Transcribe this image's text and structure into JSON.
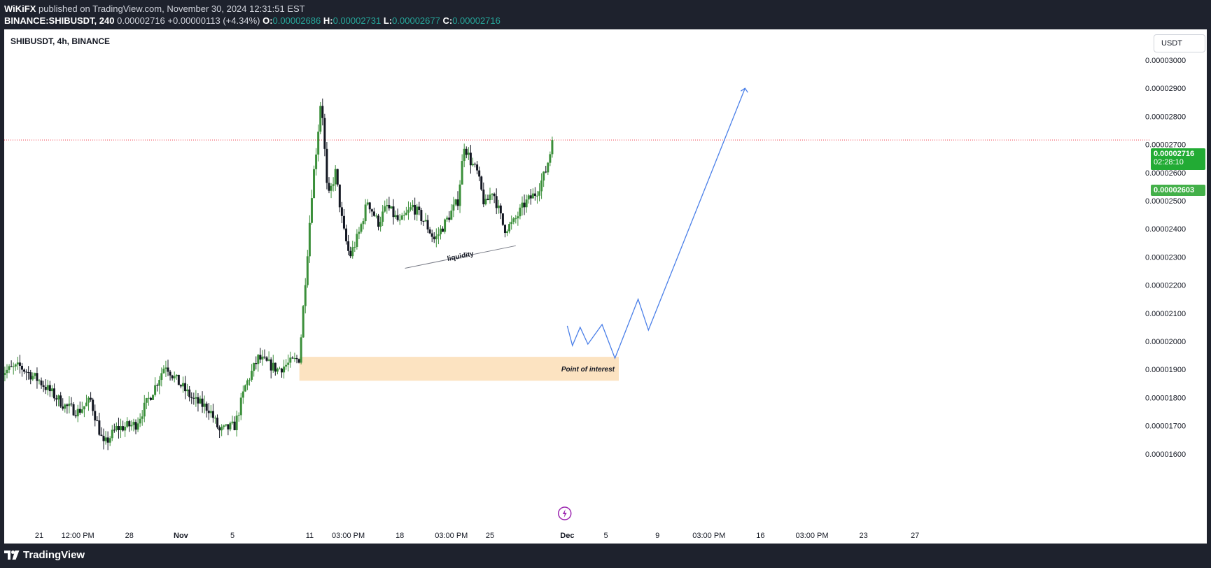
{
  "header": {
    "line1": {
      "author": "WiKiFX",
      "text": " published on TradingView.com, November 30, 2024 12:31:51 EST"
    },
    "line2": {
      "symbol": "BINANCE:SHIBUSDT, 240",
      "last": "0.00002716",
      "change": "+0.00000113 (+4.34%)",
      "o_label": "O:",
      "o": "0.00002686",
      "h_label": "H:",
      "h": "0.00002731",
      "l_label": "L:",
      "l": "0.00002677",
      "c_label": "C:",
      "c": "0.00002716"
    }
  },
  "chart": {
    "title": "SHIBUSDT, 4h, BINANCE",
    "currency": "USDT",
    "current_price": "0.00002716",
    "countdown": "02:28:10",
    "level_price": "0.00002603",
    "annotations": {
      "liquidity": "liquidity",
      "poi": "Point of interest"
    }
  },
  "chart_data": {
    "type": "candlestick",
    "title": "SHIBUSDT, 4h, BINANCE",
    "ylim": [
      1.55e-05,
      3.085e-05
    ],
    "y_ticks": [
      "0.00003000",
      "0.00002900",
      "0.00002800",
      "0.00002700",
      "0.00002600",
      "0.00002500",
      "0.00002400",
      "0.00002300",
      "0.00002200",
      "0.00002100",
      "0.00002000",
      "0.00001900",
      "0.00001800",
      "0.00001700",
      "0.00001600"
    ],
    "y_tick_values": [
      3e-05,
      2.9e-05,
      2.8e-05,
      2.7e-05,
      2.6e-05,
      2.5e-05,
      2.4e-05,
      2.3e-05,
      2.2e-05,
      2.1e-05,
      2e-05,
      1.9e-05,
      1.8e-05,
      1.7e-05,
      1.6e-05
    ],
    "x_ticks": [
      "21",
      "12:00 PM",
      "28",
      "Nov",
      "5",
      "11",
      "03:00 PM",
      "18",
      "03:00 PM",
      "25",
      "Dec",
      "5",
      "9",
      "03:00 PM",
      "16",
      "03:00 PM",
      "23",
      "27"
    ],
    "x_tick_days": [
      21,
      24,
      28,
      32,
      36,
      42,
      45,
      49,
      53,
      56,
      62,
      65,
      69,
      73,
      77,
      81,
      85,
      89
    ],
    "bold_x_ticks": [
      "Nov",
      "Dec"
    ],
    "x_axis_note": "days counted from 2024-10-01 (day 32 = Nov 1, day 62 = Dec 1)",
    "candle_interval_hours": 4,
    "anchors": [
      [
        18.0,
        1.89e-05
      ],
      [
        19.5,
        1.91e-05
      ],
      [
        21.0,
        1.86e-05
      ],
      [
        23.0,
        1.77e-05
      ],
      [
        24.0,
        1.75e-05
      ],
      [
        25.0,
        1.79e-05
      ],
      [
        26.0,
        1.63e-05
      ],
      [
        27.0,
        1.69e-05
      ],
      [
        28.5,
        1.705e-05
      ],
      [
        30.0,
        1.84e-05
      ],
      [
        30.8,
        1.92e-05
      ],
      [
        31.5,
        1.87e-05
      ],
      [
        33.0,
        1.79e-05
      ],
      [
        34.2,
        1.76e-05
      ],
      [
        35.0,
        1.68e-05
      ],
      [
        36.2,
        1.7e-05
      ],
      [
        37.0,
        1.84e-05
      ],
      [
        38.0,
        1.94e-05
      ],
      [
        39.5,
        1.9e-05
      ],
      [
        41.2,
        1.94e-05
      ],
      [
        41.8,
        2.3e-05
      ],
      [
        42.2,
        2.55e-05
      ],
      [
        42.6,
        2.72e-05
      ],
      [
        42.9,
        2.88e-05
      ],
      [
        43.4,
        2.5e-05
      ],
      [
        44.0,
        2.6e-05
      ],
      [
        44.6,
        2.4e-05
      ],
      [
        45.1,
        2.3e-05
      ],
      [
        45.8,
        2.38e-05
      ],
      [
        46.5,
        2.5e-05
      ],
      [
        47.3,
        2.42e-05
      ],
      [
        48.0,
        2.48e-05
      ],
      [
        49.0,
        2.42e-05
      ],
      [
        50.0,
        2.48e-05
      ],
      [
        51.0,
        2.42e-05
      ],
      [
        51.7,
        2.36e-05
      ],
      [
        52.5,
        2.42e-05
      ],
      [
        53.5,
        2.5e-05
      ],
      [
        54.0,
        2.7e-05
      ],
      [
        54.5,
        2.64e-05
      ],
      [
        55.0,
        2.6e-05
      ],
      [
        55.6,
        2.48e-05
      ],
      [
        56.2,
        2.54e-05
      ],
      [
        57.1,
        2.4e-05
      ],
      [
        57.8,
        2.42e-05
      ],
      [
        58.7,
        2.49e-05
      ],
      [
        59.6,
        2.53e-05
      ],
      [
        60.3,
        2.6e-05
      ],
      [
        60.9,
        2.716e-05
      ]
    ],
    "drawings": {
      "liquidity_line": {
        "from": [
          49.4,
          2.26e-05
        ],
        "to": [
          58.0,
          2.34e-05
        ],
        "label": "liquidity"
      },
      "point_of_interest_zone": {
        "x": [
          41.2,
          66.0
        ],
        "y": [
          1.86e-05,
          1.945e-05
        ],
        "label": "Point of interest"
      },
      "projection_path": [
        [
          62.0,
          2.055e-05
        ],
        [
          62.4,
          1.985e-05
        ],
        [
          63.0,
          2.05e-05
        ],
        [
          63.6,
          1.99e-05
        ],
        [
          64.7,
          2.06e-05
        ],
        [
          65.7,
          1.94e-05
        ],
        [
          67.5,
          2.15e-05
        ],
        [
          68.3,
          2.04e-05
        ],
        [
          75.8,
          2.9e-05
        ]
      ],
      "current_price_line": 2.716e-05,
      "level_line": 2.603e-05
    }
  },
  "footer": {
    "brand": "TradingView"
  },
  "colors": {
    "up_candle": "#26a69a",
    "up_candle_display": "#3b8f3a",
    "down_candle": "#131722",
    "projection": "#4a7fe8",
    "poi_zone": "#fce3c1",
    "price_line": "#f23645",
    "badge": "#22ab34",
    "header_bg": "#1e222d"
  }
}
